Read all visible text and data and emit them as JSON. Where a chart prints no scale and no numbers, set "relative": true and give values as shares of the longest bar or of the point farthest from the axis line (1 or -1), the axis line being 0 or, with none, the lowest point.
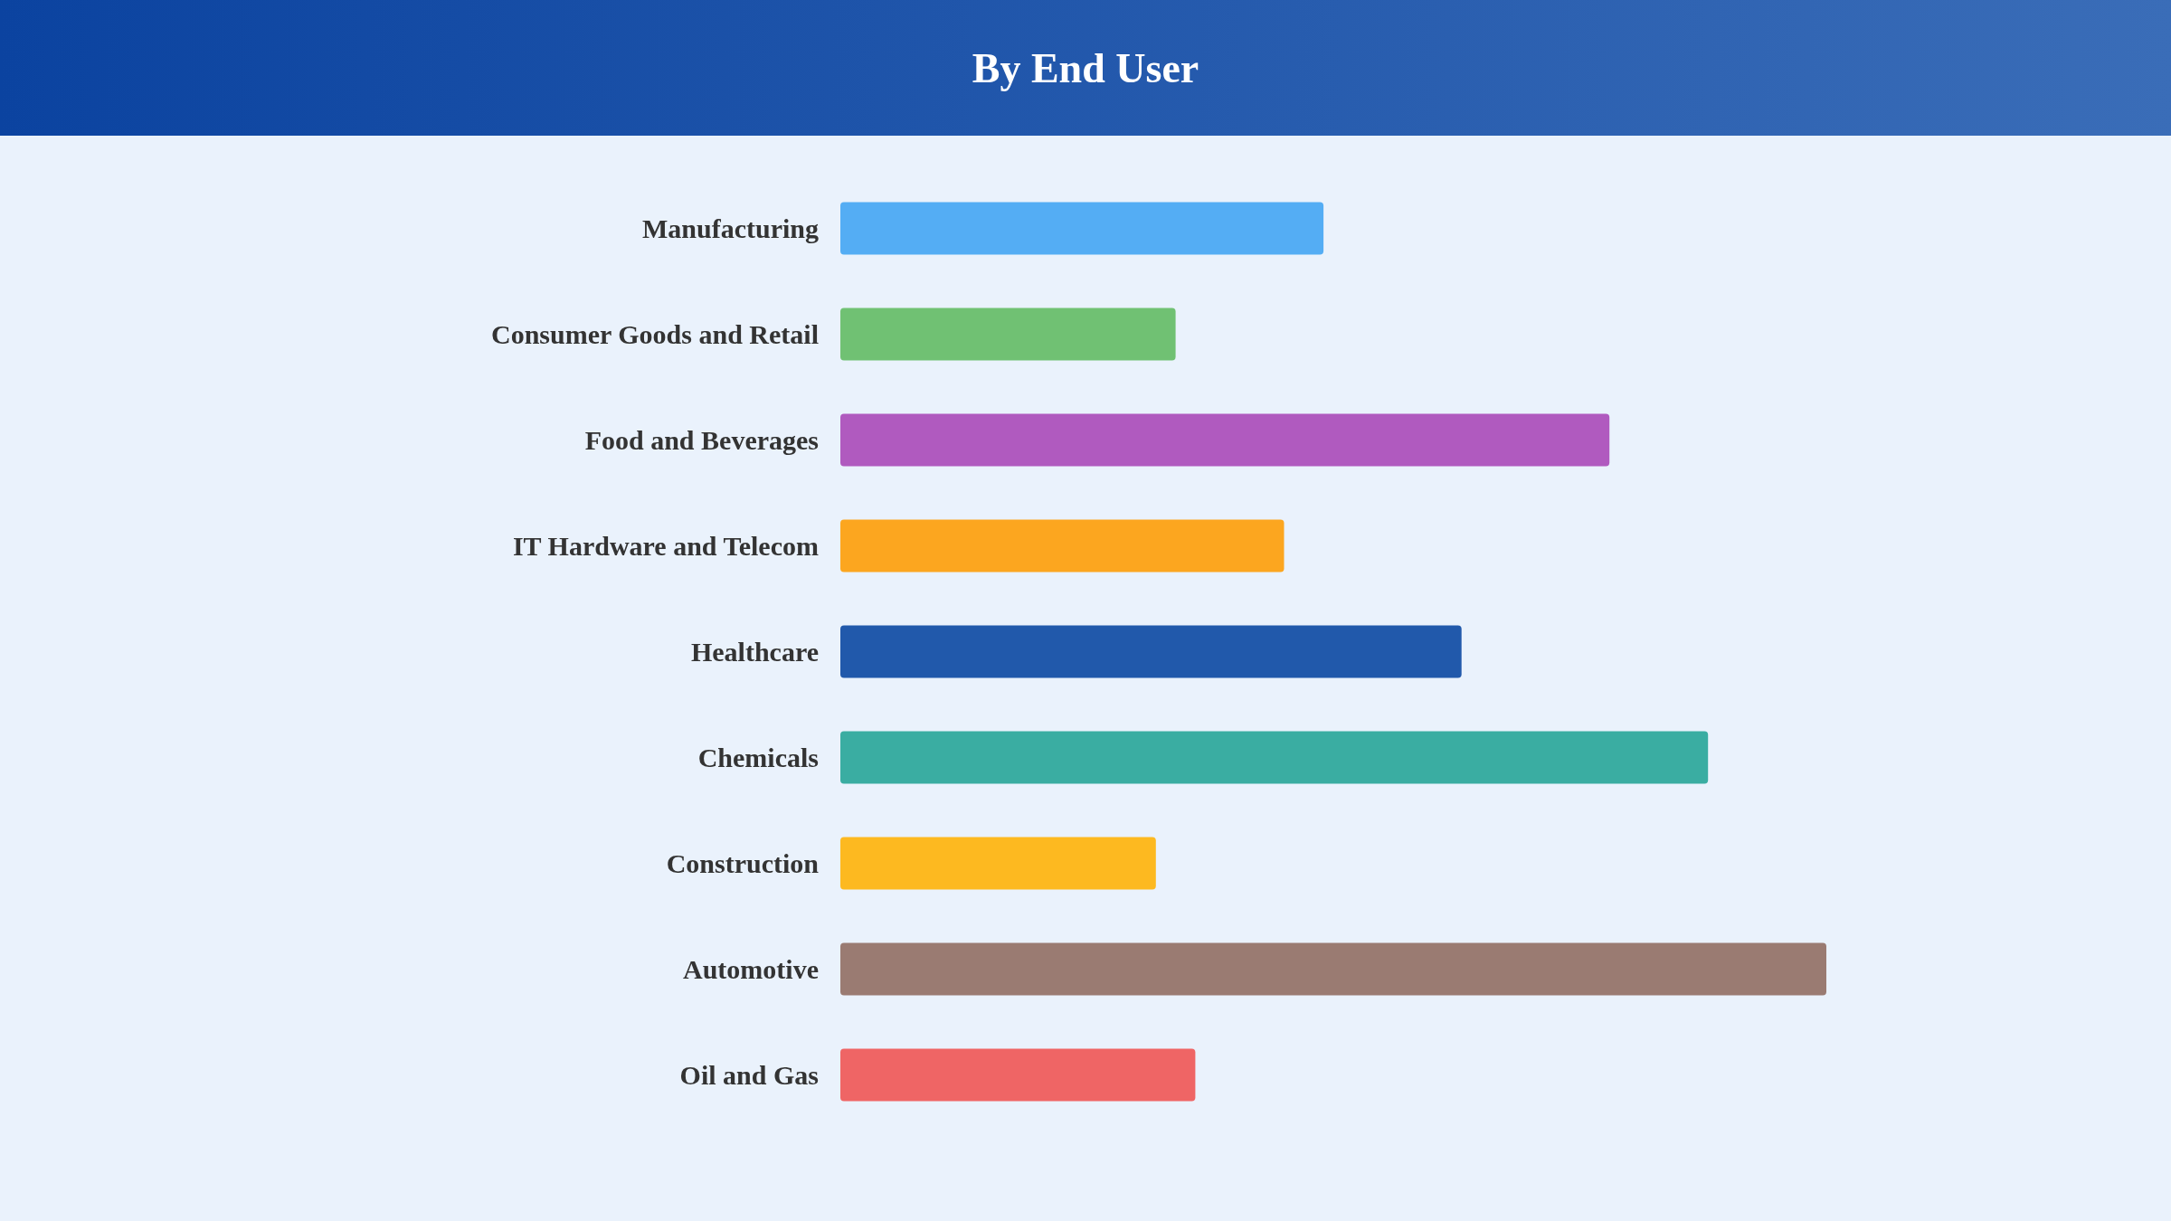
{
  "chart_data": {
    "type": "bar",
    "title": "By End User",
    "orientation": "horizontal",
    "relative": true,
    "categories": [
      "Manufacturing",
      "Consumer Goods and Retail",
      "Food and Beverages",
      "IT Hardware and Telecom",
      "Healthcare",
      "Chemicals",
      "Construction",
      "Automotive",
      "Oil and Gas"
    ],
    "values": [
      0.49,
      0.34,
      0.78,
      0.45,
      0.63,
      0.88,
      0.32,
      1,
      0.36
    ],
    "colors": [
      "#54adf4",
      "#70c173",
      "#b05abf",
      "#fca61f",
      "#2159ab",
      "#3aada2",
      "#fdb920",
      "#9a7b72",
      "#ef6565"
    ]
  }
}
